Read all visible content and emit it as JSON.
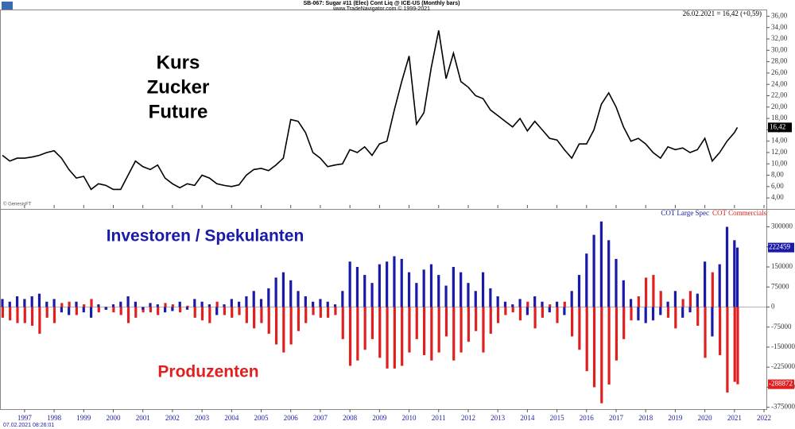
{
  "header": {
    "title": "SB-067: Sugar #11 (Elec) Cont Liq @ ICE-US (Monthly bars)",
    "subtitle": "www.TradeNavigator.com © 1999-2021",
    "timestamp": "07.02.2021 08:26:01"
  },
  "chart_data": [
    {
      "type": "line",
      "quote": "26.02.2021 = 16,42 (+0,59)",
      "source": "© GenesisFT",
      "annotations": [
        "Kurs",
        "Zucker",
        "Future"
      ],
      "xlim": [
        1996.17,
        2022.08
      ],
      "ylim": [
        2.2,
        36.9
      ],
      "yticks": [
        {
          "value": 4,
          "label": "4,00"
        },
        {
          "value": 6,
          "label": "6,00"
        },
        {
          "value": 8,
          "label": "8,00"
        },
        {
          "value": 10,
          "label": "10,00"
        },
        {
          "value": 12,
          "label": "12,00"
        },
        {
          "value": 14,
          "label": "14,00"
        },
        {
          "value": 16,
          "label": "16,00"
        },
        {
          "value": 18,
          "label": "18,00"
        },
        {
          "value": 20,
          "label": "20,00"
        },
        {
          "value": 22,
          "label": "22,00"
        },
        {
          "value": 24,
          "label": "24,00"
        },
        {
          "value": 26,
          "label": "26,00"
        },
        {
          "value": 28,
          "label": "28,00"
        },
        {
          "value": 30,
          "label": "30,00"
        },
        {
          "value": 32,
          "label": "32,00"
        },
        {
          "value": 34,
          "label": "34,00"
        },
        {
          "value": 36,
          "label": "36,00"
        }
      ],
      "x": [
        1996.25,
        1996.5,
        1996.75,
        1997.0,
        1997.25,
        1997.5,
        1997.75,
        1998.0,
        1998.25,
        1998.5,
        1998.75,
        1999.0,
        1999.25,
        1999.5,
        1999.75,
        2000.0,
        2000.25,
        2000.5,
        2000.75,
        2001.0,
        2001.25,
        2001.5,
        2001.75,
        2002.0,
        2002.25,
        2002.5,
        2002.75,
        2003.0,
        2003.25,
        2003.5,
        2003.75,
        2004.0,
        2004.25,
        2004.5,
        2004.75,
        2005.0,
        2005.25,
        2005.5,
        2005.75,
        2006.0,
        2006.25,
        2006.5,
        2006.75,
        2007.0,
        2007.25,
        2007.5,
        2007.75,
        2008.0,
        2008.25,
        2008.5,
        2008.75,
        2009.0,
        2009.25,
        2009.5,
        2009.75,
        2010.0,
        2010.25,
        2010.5,
        2010.75,
        2011.0,
        2011.25,
        2011.5,
        2011.75,
        2012.0,
        2012.25,
        2012.5,
        2012.75,
        2013.0,
        2013.25,
        2013.5,
        2013.75,
        2014.0,
        2014.25,
        2014.5,
        2014.75,
        2015.0,
        2015.25,
        2015.5,
        2015.75,
        2016.0,
        2016.25,
        2016.5,
        2016.75,
        2017.0,
        2017.25,
        2017.5,
        2017.75,
        2018.0,
        2018.25,
        2018.5,
        2018.75,
        2019.0,
        2019.25,
        2019.5,
        2019.75,
        2020.0,
        2020.25,
        2020.5,
        2020.75,
        2021.0,
        2021.1
      ],
      "series": [
        {
          "name": "Sugar #11",
          "color": "#000000",
          "last_label": "16,42",
          "values": [
            11.5,
            10.5,
            11,
            11,
            11.2,
            11.5,
            12,
            12.3,
            11,
            9,
            7.5,
            7.8,
            5.5,
            6.5,
            6.2,
            5.5,
            5.5,
            8,
            10.5,
            9.5,
            9,
            9.8,
            7.5,
            6.5,
            5.8,
            6.5,
            6.2,
            8,
            7.5,
            6.5,
            6.2,
            6,
            6.3,
            8,
            9,
            9.2,
            8.8,
            9.8,
            11,
            17.8,
            17.5,
            15.5,
            12,
            11,
            9.5,
            9.8,
            10,
            12.5,
            12,
            13,
            11.5,
            13.5,
            14,
            19.5,
            24.5,
            29,
            17,
            19,
            27,
            33.5,
            25,
            29.5,
            24.5,
            23.5,
            22,
            21.5,
            19.5,
            18.5,
            17.5,
            16.5,
            18,
            15.8,
            17.5,
            16,
            14.5,
            14.2,
            12.5,
            11,
            13.5,
            13.5,
            16,
            20.5,
            22.5,
            20,
            16.5,
            14,
            14.5,
            13.5,
            12,
            11,
            13,
            12.5,
            12.8,
            12,
            12.5,
            14.5,
            10.5,
            12,
            14,
            15.5,
            16.42
          ]
        }
      ]
    },
    {
      "type": "bar",
      "annotations": [
        "Investoren / Spekulanten",
        "Produzenten"
      ],
      "xlim": [
        1996.17,
        2022.08
      ],
      "ylim": [
        -382000,
        358000
      ],
      "xticks": [
        1997,
        1998,
        1999,
        2000,
        2001,
        2002,
        2003,
        2004,
        2005,
        2006,
        2007,
        2008,
        2009,
        2010,
        2011,
        2012,
        2013,
        2014,
        2015,
        2016,
        2017,
        2018,
        2019,
        2020,
        2021,
        2022
      ],
      "yticks": [
        300000,
        225000,
        150000,
        75000,
        0,
        -75000,
        -150000,
        -225000,
        -300000,
        -375000
      ],
      "x": [
        1996.25,
        1996.5,
        1996.75,
        1997.0,
        1997.25,
        1997.5,
        1997.75,
        1998.0,
        1998.25,
        1998.5,
        1998.75,
        1999.0,
        1999.25,
        1999.5,
        1999.75,
        2000.0,
        2000.25,
        2000.5,
        2000.75,
        2001.0,
        2001.25,
        2001.5,
        2001.75,
        2002.0,
        2002.25,
        2002.5,
        2002.75,
        2003.0,
        2003.25,
        2003.5,
        2003.75,
        2004.0,
        2004.25,
        2004.5,
        2004.75,
        2005.0,
        2005.25,
        2005.5,
        2005.75,
        2006.0,
        2006.25,
        2006.5,
        2006.75,
        2007.0,
        2007.25,
        2007.5,
        2007.75,
        2008.0,
        2008.25,
        2008.5,
        2008.75,
        2009.0,
        2009.25,
        2009.5,
        2009.75,
        2010.0,
        2010.25,
        2010.5,
        2010.75,
        2011.0,
        2011.25,
        2011.5,
        2011.75,
        2012.0,
        2012.25,
        2012.5,
        2012.75,
        2013.0,
        2013.25,
        2013.5,
        2013.75,
        2014.0,
        2014.25,
        2014.5,
        2014.75,
        2015.0,
        2015.25,
        2015.5,
        2015.75,
        2016.0,
        2016.25,
        2016.5,
        2016.75,
        2017.0,
        2017.25,
        2017.5,
        2017.75,
        2018.0,
        2018.25,
        2018.5,
        2018.75,
        2019.0,
        2019.25,
        2019.5,
        2019.75,
        2020.0,
        2020.25,
        2020.5,
        2020.75,
        2021.0,
        2021.1
      ],
      "series": [
        {
          "name": "COT Large Spec",
          "color": "#1a1aa8",
          "values": [
            30000,
            20000,
            40000,
            30000,
            40000,
            50000,
            20000,
            30000,
            -20000,
            -30000,
            20000,
            -20000,
            -40000,
            10000,
            -10000,
            10000,
            20000,
            40000,
            20000,
            -10000,
            15000,
            10000,
            -20000,
            -15000,
            20000,
            -10000,
            30000,
            20000,
            10000,
            -30000,
            10000,
            30000,
            20000,
            40000,
            60000,
            30000,
            70000,
            110000,
            130000,
            100000,
            60000,
            40000,
            20000,
            30000,
            20000,
            10000,
            60000,
            170000,
            150000,
            120000,
            90000,
            160000,
            170000,
            190000,
            180000,
            130000,
            90000,
            140000,
            160000,
            120000,
            80000,
            150000,
            130000,
            90000,
            60000,
            130000,
            70000,
            40000,
            20000,
            10000,
            30000,
            -30000,
            40000,
            20000,
            -20000,
            20000,
            -30000,
            60000,
            120000,
            200000,
            270000,
            320000,
            250000,
            180000,
            100000,
            30000,
            -50000,
            -60000,
            -50000,
            -30000,
            20000,
            60000,
            -40000,
            -20000,
            50000,
            170000,
            -110000,
            160000,
            300000,
            250000,
            222459
          ]
        },
        {
          "name": "COT Commercials",
          "color": "#e02020",
          "values": [
            -40000,
            -50000,
            -60000,
            -60000,
            -70000,
            -100000,
            -40000,
            -60000,
            15000,
            20000,
            -30000,
            10000,
            30000,
            -20000,
            -10000,
            -20000,
            -30000,
            -60000,
            -40000,
            -20000,
            -20000,
            -30000,
            15000,
            10000,
            -20000,
            5000,
            -40000,
            -50000,
            -60000,
            20000,
            -30000,
            -40000,
            -30000,
            -60000,
            -80000,
            -60000,
            -100000,
            -140000,
            -170000,
            -140000,
            -90000,
            -60000,
            -30000,
            -40000,
            -40000,
            -30000,
            -120000,
            -220000,
            -200000,
            -160000,
            -120000,
            -190000,
            -230000,
            -230000,
            -220000,
            -170000,
            -120000,
            -180000,
            -200000,
            -170000,
            -110000,
            -200000,
            -170000,
            -130000,
            -90000,
            -170000,
            -100000,
            -60000,
            -30000,
            -20000,
            -50000,
            20000,
            -80000,
            -40000,
            10000,
            -60000,
            20000,
            -110000,
            -160000,
            -240000,
            -300000,
            -360000,
            -290000,
            -200000,
            -120000,
            -50000,
            40000,
            110000,
            120000,
            60000,
            -40000,
            -80000,
            30000,
            60000,
            -70000,
            -190000,
            130000,
            -180000,
            -320000,
            -280000,
            -288872
          ]
        }
      ]
    }
  ]
}
